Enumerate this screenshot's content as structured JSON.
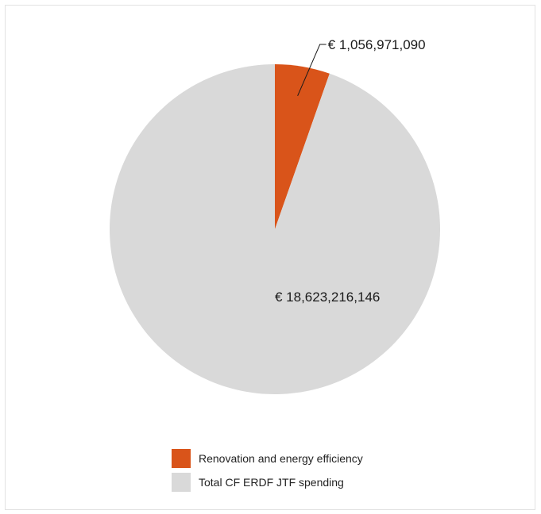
{
  "chart_data": {
    "type": "pie",
    "slices": [
      {
        "name": "Renovation and energy efficiency",
        "value": 1056971090,
        "label": "€ 1,056,971,090",
        "color": "#d9541a"
      },
      {
        "name": "Total CF ERDF JTF spending",
        "value": 18623216146,
        "label": "€ 18,623,216,146",
        "color": "#d9d9d9"
      }
    ],
    "legend_position": "bottom"
  }
}
